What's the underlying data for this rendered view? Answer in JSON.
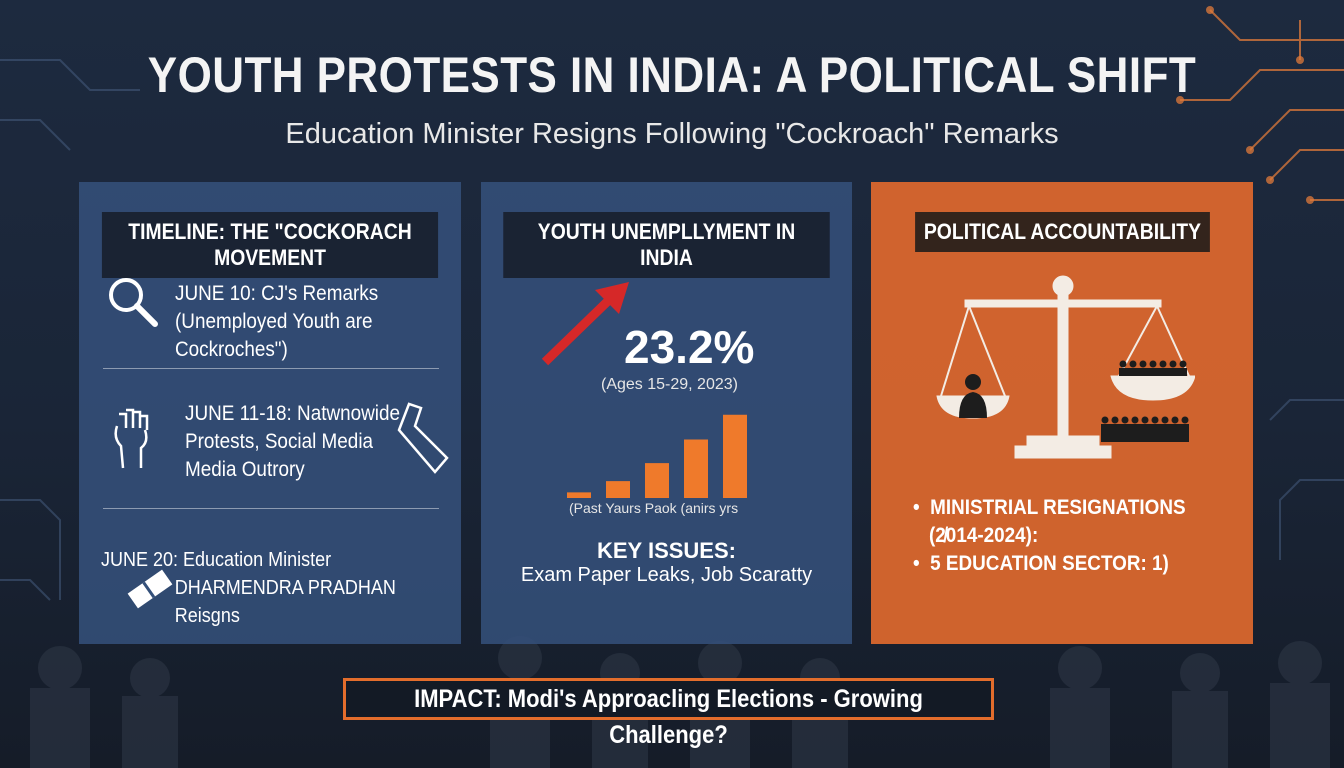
{
  "header": {
    "title": "YOUTH PROTESTS IN INDIA: A POLITICAL SHIFT",
    "subtitle": "Education Minister Resigns Following \"Cockroach\" Remarks"
  },
  "timeline": {
    "title": "TIMELINE: THE \"COCKORACH MOVEMENT",
    "events": [
      {
        "line1": "JUNE 10: CJ's Remarks",
        "line2": "(Unemployed Youth are Cockroches\")",
        "line3": "",
        "icon": "magnifier-icon"
      },
      {
        "line1": "JUNE 11-18: Natwnowide",
        "line2": "Protests, Social Media",
        "line3": "Media Outrory",
        "icon": "raised-fist-icon"
      },
      {
        "line1": "JUNE 20:  Education Minister",
        "line2": "DHARMENDRA PRADHAN Reisgns",
        "line3": "",
        "icon": "resignation-icon"
      }
    ]
  },
  "unemployment": {
    "title": "YOUTH UNEMPLLYMENT IN INDIA",
    "stat": "23.2%",
    "stat_note": "(Ages 15-29, 2023)",
    "chart_caption": "(Past Yaurs Paok (anirs yrs",
    "key_issues_title": "KEY ISSUES:",
    "key_issues": "Exam Paper Leaks, Job Scaratty",
    "colors": {
      "bars": "#ef7a2b",
      "arrow": "#d62828"
    }
  },
  "chart_data": {
    "type": "bar",
    "categories": [
      "",
      "",
      "",
      "",
      ""
    ],
    "values": [
      0.5,
      1.5,
      3.1,
      5.2,
      7.4
    ],
    "title": "",
    "xlabel": "(Past Yaurs Paok (anirs yrs",
    "ylabel": "",
    "ylim": [
      0,
      8
    ]
  },
  "accountability": {
    "title": "POLITICAL ACCOUNTABILITY",
    "bullets": [
      "MINISTRIAL RESIGNATIONS",
      "(2̸014-2024):",
      "5 EDUCATION SECTOR: 1)"
    ],
    "icon": "scales-of-justice-icon"
  },
  "footer": {
    "impact": "IMPACT: Modi's Approacling Elections - Growing Challenge?"
  },
  "colors": {
    "accent": "#e36d2c",
    "panel_blue": "#34507a",
    "panel_orange": "#de682d"
  }
}
